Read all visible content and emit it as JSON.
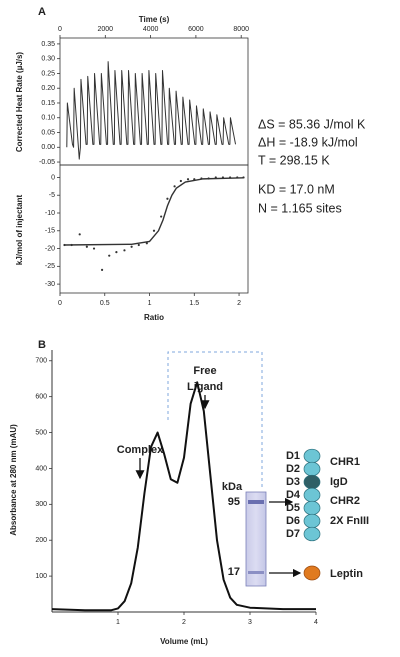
{
  "chart_data": [
    {
      "type": "line",
      "panel": "A",
      "x_label": "Time (s)",
      "y_label": "Corrected Heat Rate (µJ/s)",
      "color": "#333333",
      "x": [
        300,
        325,
        550,
        600,
        625,
        850,
        900,
        925,
        1150,
        1200,
        1225,
        1450,
        1500,
        1525,
        1750,
        1800,
        1825,
        2050,
        2100,
        2125,
        2350,
        2400,
        2425,
        2650,
        2700,
        2725,
        2950,
        3000,
        3025,
        3250,
        3300,
        3325,
        3550,
        3600,
        3625,
        3850,
        3900,
        3925,
        4150,
        4200,
        4225,
        4450,
        4500,
        4525,
        4750,
        4800,
        4825,
        5050,
        5100,
        5125,
        5350,
        5400,
        5425,
        5650,
        5700,
        5725,
        5950,
        6000,
        6025,
        6250,
        6300,
        6325,
        6550,
        6600,
        6625,
        6850,
        6900,
        6925,
        7150,
        7200,
        7225,
        7450,
        7500,
        7525,
        7750
      ],
      "values": [
        0.0,
        0.15,
        0.01,
        0.0,
        0.2,
        -0.04,
        0.0,
        0.23,
        0.01,
        0.01,
        0.24,
        0.01,
        0.01,
        0.25,
        0.01,
        0.01,
        0.25,
        0.01,
        0.01,
        0.29,
        0.01,
        0.01,
        0.26,
        0.01,
        0.01,
        0.26,
        0.01,
        0.01,
        0.26,
        0.01,
        0.01,
        0.25,
        0.01,
        0.01,
        0.25,
        0.01,
        0.01,
        0.26,
        0.01,
        0.01,
        0.25,
        0.01,
        0.01,
        0.26,
        0.01,
        0.01,
        0.2,
        0.01,
        0.01,
        0.19,
        0.01,
        0.01,
        0.17,
        0.01,
        0.01,
        0.16,
        0.01,
        0.01,
        0.14,
        0.01,
        0.01,
        0.13,
        0.01,
        0.01,
        0.12,
        0.01,
        0.01,
        0.11,
        0.01,
        0.01,
        0.1,
        0.01,
        0.01,
        0.1,
        0.01
      ],
      "xlim": [
        0,
        8300
      ],
      "xticks": [
        0,
        2000,
        4000,
        6000,
        8000
      ],
      "x_axis_side": "top",
      "ylim": [
        -0.06,
        0.37
      ],
      "yticks": [
        {
          "value": -0.05,
          "label": "-0.05"
        },
        {
          "value": 0,
          "label": "0.00"
        },
        {
          "value": 0.05,
          "label": "0.05"
        },
        {
          "value": 0.1,
          "label": "0.10"
        },
        {
          "value": 0.15,
          "label": "0.15"
        },
        {
          "value": 0.2,
          "label": "0.20"
        },
        {
          "value": 0.25,
          "label": "0.25"
        },
        {
          "value": 0.3,
          "label": "0.30"
        },
        {
          "value": 0.35,
          "label": "0.35"
        }
      ]
    },
    {
      "type": "scatter",
      "x_label": "Ratio",
      "y_label": "kJ/mol of injectant",
      "color": "#333333",
      "series": [
        {
          "kind": "scatter",
          "x": [
            0.05,
            0.13,
            0.22,
            0.3,
            0.38,
            0.47,
            0.55,
            0.63,
            0.72,
            0.8,
            0.88,
            0.97,
            1.05,
            1.13,
            1.2,
            1.28,
            1.35,
            1.43,
            1.5,
            1.58,
            1.66,
            1.74,
            1.82,
            1.9,
            1.98,
            2.05
          ],
          "values": [
            -19,
            -19,
            -16,
            -19.5,
            -20,
            -26,
            -22,
            -21,
            -20.5,
            -19.5,
            -19,
            -18.5,
            -15,
            -11,
            -6,
            -2.5,
            -1,
            -0.5,
            -0.5,
            -0.3,
            -0.3,
            0,
            0,
            0,
            0,
            0
          ]
        },
        {
          "kind": "line",
          "x": [
            0.05,
            0.8,
            1.0,
            1.1,
            1.15,
            1.2,
            1.25,
            1.3,
            1.4,
            1.6,
            2.05
          ],
          "values": [
            -19,
            -18.8,
            -18,
            -15,
            -12,
            -8,
            -5,
            -3,
            -1.3,
            -0.4,
            -0.1
          ]
        }
      ],
      "xlim": [
        0,
        2.1
      ],
      "xticks": [
        0,
        0.5,
        1,
        1.5,
        2
      ],
      "ylim": [
        -32.5,
        3.5
      ],
      "yticks": [
        0,
        -5,
        -10,
        -15,
        -20,
        -25,
        -30
      ],
      "annotations": [
        "ΔS = 85.36 J/mol K",
        "ΔH = -18.9 kJ/mol",
        "T = 298.15 K",
        "KD = 17.0 nM",
        "N = 1.165 sites"
      ]
    },
    {
      "type": "line",
      "panel": "B",
      "x_label": "Volume (mL)",
      "y_label": "Absorbance at 280 nm (mAU)",
      "color": "#111111",
      "x": [
        0,
        0.5,
        0.9,
        1.0,
        1.1,
        1.2,
        1.3,
        1.4,
        1.5,
        1.6,
        1.7,
        1.8,
        1.9,
        2.0,
        2.1,
        2.2,
        2.3,
        2.4,
        2.5,
        2.6,
        2.7,
        2.8,
        3.0,
        3.5,
        4.0
      ],
      "values": [
        8,
        5,
        5,
        10,
        30,
        80,
        180,
        330,
        460,
        500,
        440,
        370,
        360,
        430,
        580,
        640,
        560,
        380,
        200,
        90,
        40,
        20,
        12,
        8,
        8
      ],
      "xlim": [
        0,
        4
      ],
      "xticks": [
        1,
        2,
        3,
        4
      ],
      "ylim": [
        0,
        730
      ],
      "yticks": [
        100,
        200,
        300,
        400,
        500,
        600,
        700
      ],
      "annotations": {
        "complex": "Complex",
        "free_ligand": [
          "Free",
          "Ligand"
        ]
      },
      "gel": {
        "unit": "kDa",
        "markers": [
          95,
          17
        ]
      },
      "domains": {
        "labels": [
          "D1",
          "D2",
          "D3",
          "D4",
          "D5",
          "D6",
          "D7"
        ],
        "groups": [
          "CHR1",
          "IgD",
          "CHR2",
          "2X FnIII"
        ],
        "ligand": "Leptin"
      }
    }
  ]
}
